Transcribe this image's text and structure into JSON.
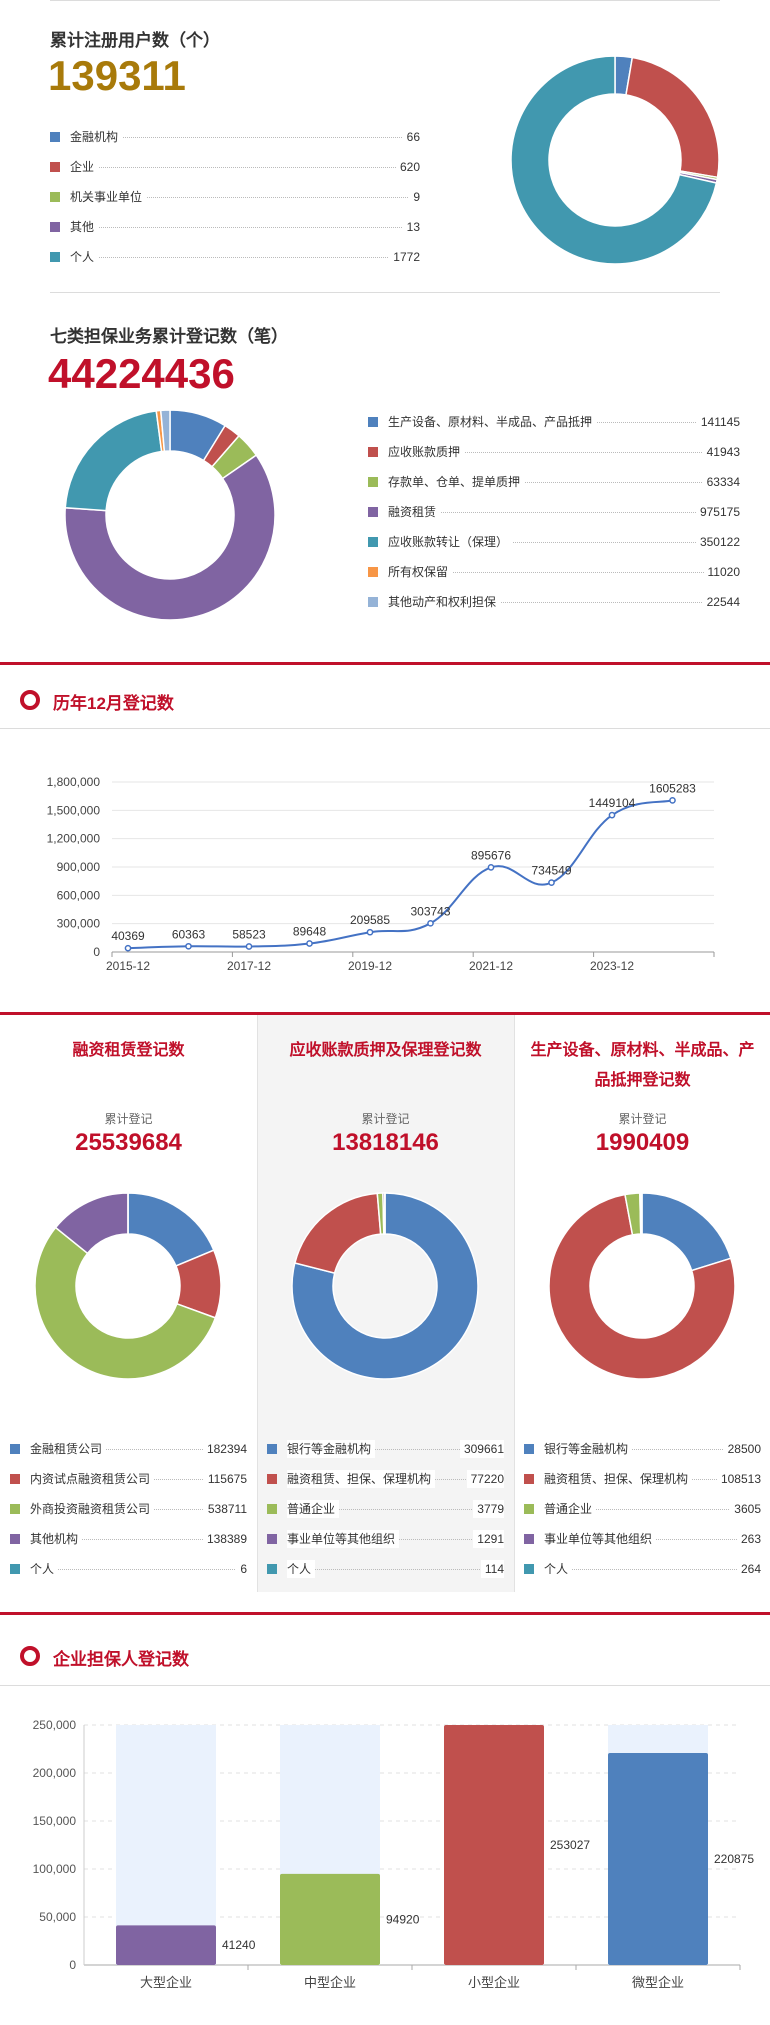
{
  "users": {
    "title": "累计注册用户数（个）",
    "total": "139311",
    "items": [
      {
        "label": "金融机构",
        "value": "66",
        "color": "#4f81bd"
      },
      {
        "label": "企业",
        "value": "620",
        "color": "#c0504d"
      },
      {
        "label": "机关事业单位",
        "value": "9",
        "color": "#9bbb59"
      },
      {
        "label": "其他",
        "value": "13",
        "color": "#8064a2"
      },
      {
        "label": "个人",
        "value": "1772",
        "color": "#4198af"
      }
    ]
  },
  "guarantee": {
    "title": "七类担保业务累计登记数（笔）",
    "total": "44224436",
    "items": [
      {
        "label": "生产设备、原材料、半成品、产品抵押",
        "value": "141145",
        "color": "#4f81bd"
      },
      {
        "label": "应收账款质押",
        "value": "41943",
        "color": "#c0504d"
      },
      {
        "label": "存款单、仓单、提单质押",
        "value": "63334",
        "color": "#9bbb59"
      },
      {
        "label": "融资租赁",
        "value": "975175",
        "color": "#8064a2"
      },
      {
        "label": "应收账款转让（保理）",
        "value": "350122",
        "color": "#4198af"
      },
      {
        "label": "所有权保留",
        "value": "11020",
        "color": "#f79646"
      },
      {
        "label": "其他动产和权利担保",
        "value": "22544",
        "color": "#95b3d7"
      }
    ]
  },
  "dec_section": {
    "title": "历年12月登记数"
  },
  "columns_section": {
    "subtitle": "累计登记",
    "columns": [
      {
        "title": "融资租赁登记数",
        "total": "25539684",
        "items": [
          {
            "label": "金融租赁公司",
            "value": "182394",
            "color": "#4f81bd"
          },
          {
            "label": "内资试点融资租赁公司",
            "value": "115675",
            "color": "#c0504d"
          },
          {
            "label": "外商投资融资租赁公司",
            "value": "538711",
            "color": "#9bbb59"
          },
          {
            "label": "其他机构",
            "value": "138389",
            "color": "#8064a2"
          },
          {
            "label": "个人",
            "value": "6",
            "color": "#4198af"
          }
        ]
      },
      {
        "title": "应收账款质押及保理登记数",
        "total": "13818146",
        "items": [
          {
            "label": "银行等金融机构",
            "value": "309661",
            "color": "#4f81bd"
          },
          {
            "label": "融资租赁、担保、保理机构",
            "value": "77220",
            "color": "#c0504d"
          },
          {
            "label": "普通企业",
            "value": "3779",
            "color": "#9bbb59"
          },
          {
            "label": "事业单位等其他组织",
            "value": "1291",
            "color": "#8064a2"
          },
          {
            "label": "个人",
            "value": "114",
            "color": "#4198af"
          }
        ]
      },
      {
        "title": "生产设备、原材料、半成品、产品抵押登记数",
        "total": "1990409",
        "items": [
          {
            "label": "银行等金融机构",
            "value": "28500",
            "color": "#4f81bd"
          },
          {
            "label": "融资租赁、担保、保理机构",
            "value": "108513",
            "color": "#c0504d"
          },
          {
            "label": "普通企业",
            "value": "3605",
            "color": "#9bbb59"
          },
          {
            "label": "事业单位等其他组织",
            "value": "263",
            "color": "#8064a2"
          },
          {
            "label": "个人",
            "value": "264",
            "color": "#4198af"
          }
        ]
      }
    ]
  },
  "ent_section": {
    "title": "企业担保人登记数"
  },
  "chart_data": [
    {
      "type": "line",
      "title": "历年12月登记数",
      "x": [
        "2015-12",
        "2016-12",
        "2017-12",
        "2018-12",
        "2019-12",
        "2020-12",
        "2021-12",
        "2022-12",
        "2023-12",
        "2024-12"
      ],
      "x_tick_labels": [
        "2015-12",
        "2017-12",
        "2019-12",
        "2021-12",
        "2023-12"
      ],
      "values": [
        40369,
        60363,
        58523,
        89648,
        209585,
        303743,
        895676,
        734549,
        1449104,
        1605283
      ],
      "y_ticks": [
        "0",
        "300,000",
        "600,000",
        "900,000",
        "1,200,000",
        "1,500,000",
        "1,800,000"
      ],
      "ylim": [
        0,
        1800000
      ],
      "color": "#4472c4",
      "grid": true
    },
    {
      "type": "bar",
      "title": "企业担保人登记数",
      "categories": [
        "大型企业",
        "中型企业",
        "小型企业",
        "微型企业"
      ],
      "values": [
        41240,
        94920,
        253027,
        220875
      ],
      "colors": [
        "#8064a2",
        "#9bbb59",
        "#c0504d",
        "#4f81bd"
      ],
      "background_color": "#eaf2fd",
      "y_ticks": [
        "0",
        "50,000",
        "100,000",
        "150,000",
        "200,000",
        "250,000"
      ],
      "ylim": [
        0,
        250000
      ],
      "grid": true
    }
  ]
}
